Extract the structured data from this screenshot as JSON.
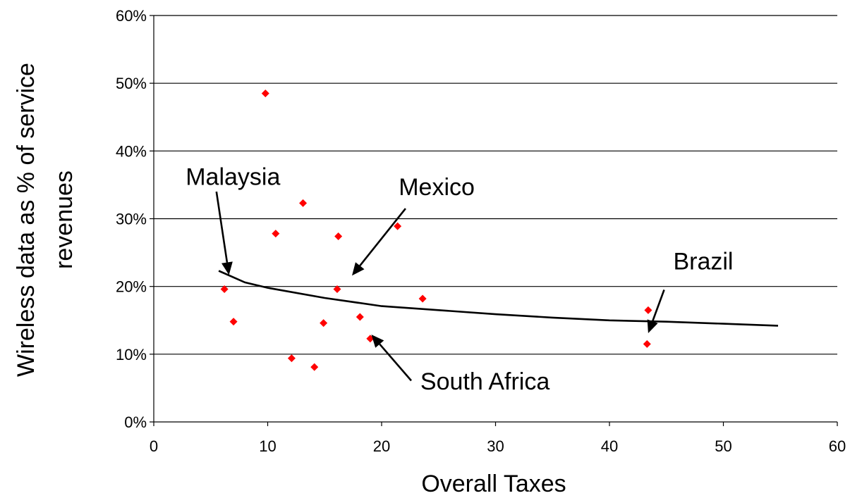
{
  "chart_data": {
    "type": "scatter",
    "xlabel": "Overall Taxes",
    "ylabel_line1": "Wireless data as % of service",
    "ylabel_line2": "revenues",
    "xlim": [
      0,
      60
    ],
    "ylim": [
      0,
      60
    ],
    "x_ticks": [
      "0",
      "10",
      "20",
      "30",
      "40",
      "50",
      "60"
    ],
    "y_ticks": [
      "0%",
      "10%",
      "20%",
      "30%",
      "40%",
      "50%",
      "60%"
    ],
    "grid": "horizontal",
    "point_color": "#ff0000",
    "points": [
      {
        "x": 9.8,
        "y": 48.5
      },
      {
        "x": 13.1,
        "y": 32.3
      },
      {
        "x": 10.7,
        "y": 27.8
      },
      {
        "x": 16.2,
        "y": 27.4
      },
      {
        "x": 21.4,
        "y": 28.9
      },
      {
        "x": 6.2,
        "y": 19.6
      },
      {
        "x": 16.1,
        "y": 19.6
      },
      {
        "x": 23.6,
        "y": 18.2
      },
      {
        "x": 7.0,
        "y": 14.8
      },
      {
        "x": 14.9,
        "y": 14.6
      },
      {
        "x": 18.1,
        "y": 15.5
      },
      {
        "x": 19.0,
        "y": 12.3
      },
      {
        "x": 12.1,
        "y": 9.4
      },
      {
        "x": 14.1,
        "y": 8.1
      },
      {
        "x": 43.4,
        "y": 16.5
      },
      {
        "x": 43.3,
        "y": 11.5
      }
    ],
    "trendline": {
      "type": "power",
      "color": "#000000",
      "points": [
        {
          "x": 5.7,
          "y": 22.3
        },
        {
          "x": 8,
          "y": 20.6
        },
        {
          "x": 10,
          "y": 19.8
        },
        {
          "x": 15,
          "y": 18.3
        },
        {
          "x": 20,
          "y": 17.1
        },
        {
          "x": 25,
          "y": 16.5
        },
        {
          "x": 30,
          "y": 15.9
        },
        {
          "x": 35,
          "y": 15.4
        },
        {
          "x": 40,
          "y": 15.0
        },
        {
          "x": 45,
          "y": 14.8
        },
        {
          "x": 50,
          "y": 14.5
        },
        {
          "x": 54.8,
          "y": 14.2
        }
      ]
    },
    "annotations": [
      {
        "label": "Malaysia",
        "text_x": 2.8,
        "text_y": 35.0,
        "arrow_from": [
          5.5,
          34.0
        ],
        "arrow_to": [
          6.6,
          21.7
        ]
      },
      {
        "label": "Mexico",
        "text_x": 21.5,
        "text_y": 33.5,
        "arrow_from": [
          22.1,
          31.5
        ],
        "arrow_to": [
          17.4,
          21.6
        ]
      },
      {
        "label": "Brazil",
        "text_x": 45.6,
        "text_y": 22.5,
        "arrow_from": [
          44.8,
          19.5
        ],
        "arrow_to": [
          43.4,
          13.1
        ]
      },
      {
        "label": "South Africa",
        "text_x": 23.4,
        "text_y": 4.8,
        "arrow_from": [
          22.6,
          6.1
        ],
        "arrow_to": [
          19.1,
          12.9
        ]
      }
    ]
  }
}
